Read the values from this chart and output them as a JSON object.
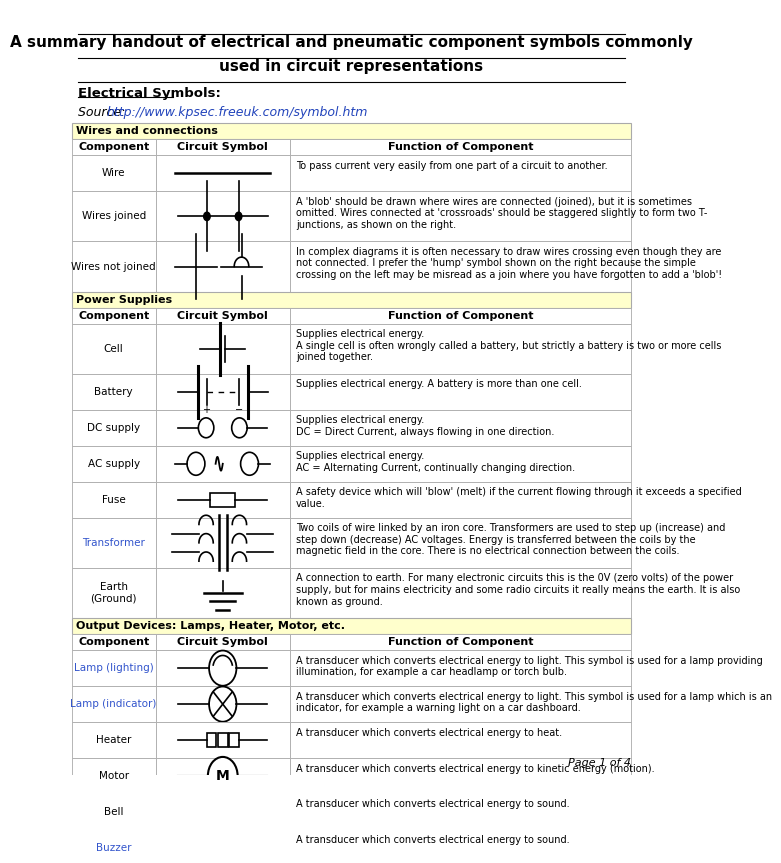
{
  "title_line1": "A summary handout of electrical and pneumatic component symbols commonly",
  "title_line2": "used in circuit representations",
  "section1_label": "Electrical Symbols:",
  "source_text": "Source: ",
  "source_url": "http://www.kpsec.freeuk.com/symbol.htm",
  "page_label": "Page 1 of 4",
  "bg_color": "#ffffff",
  "header_bg": "#ffffcc",
  "table_border": "#aaaaaa",
  "col_header_text": [
    "Component",
    "Circuit Symbol",
    "Function of Component"
  ],
  "wires_section_label": "Wires and connections",
  "wires_items": [
    {
      "component": "Wire",
      "function": "To pass current very easily from one part of a circuit to another.",
      "link": false
    },
    {
      "component": "Wires joined",
      "function": "A 'blob' should be drawn where wires are connected (joined), but it is sometimes\nomitted. Wires connected at 'crossroads' should be staggered slightly to form two T-\njunctions, as shown on the right.",
      "link": false
    },
    {
      "component": "Wires not joined",
      "function": "In complex diagrams it is often necessary to draw wires crossing even though they are\nnot connected. I prefer the 'hump' symbol shown on the right because the simple\ncrossing on the left may be misread as a join where you have forgotten to add a 'blob'!",
      "link": false
    }
  ],
  "power_section_label": "Power Supplies",
  "power_items": [
    {
      "component": "Cell",
      "function": "Supplies electrical energy.\nA single cell is often wrongly called a battery, but strictly a battery is two or more cells\njoined together.",
      "link": false
    },
    {
      "component": "Battery",
      "function": "Supplies electrical energy. A battery is more than one cell.",
      "link": false
    },
    {
      "component": "DC supply",
      "function": "Supplies electrical energy.\nDC = Direct Current, always flowing in one direction.",
      "link": false
    },
    {
      "component": "AC supply",
      "function": "Supplies electrical energy.\nAC = Alternating Current, continually changing direction.",
      "link": false
    },
    {
      "component": "Fuse",
      "function": "A safety device which will 'blow' (melt) if the current flowing through it exceeds a specified\nvalue.",
      "link": false
    },
    {
      "component": "Transformer",
      "function": "Two coils of wire linked by an iron core. Transformers are used to step up (increase) and\nstep down (decrease) AC voltages. Energy is transferred between the coils by the\nmagnetic field in the core. There is no electrical connection between the coils.",
      "link": true
    },
    {
      "component": "Earth\n(Ground)",
      "function": "A connection to earth. For many electronic circuits this is the 0V (zero volts) of the power\nsupply, but for mains electricity and some radio circuits it really means the earth. It is also\nknown as ground.",
      "link": false
    }
  ],
  "output_section_label": "Output Devices: Lamps, Heater, Motor, etc.",
  "output_items": [
    {
      "component": "Lamp (lighting)",
      "function": "A transducer which converts electrical energy to light. This symbol is used for a lamp providing\nillumination, for example a car headlamp or torch bulb.",
      "link": true
    },
    {
      "component": "Lamp (indicator)",
      "function": "A transducer which converts electrical energy to light. This symbol is used for a lamp which is an\nindicator, for example a warning light on a car dashboard.",
      "link": true
    },
    {
      "component": "Heater",
      "function": "A transducer which converts electrical energy to heat.",
      "link": false
    },
    {
      "component": "Motor",
      "function": "A transducer which converts electrical energy to kinetic energy (motion).",
      "link": false
    },
    {
      "component": "Bell",
      "function": "A transducer which converts electrical energy to sound.",
      "link": false
    },
    {
      "component": "Buzzer",
      "function": "A transducer which converts electrical energy to sound.",
      "link": true
    }
  ]
}
